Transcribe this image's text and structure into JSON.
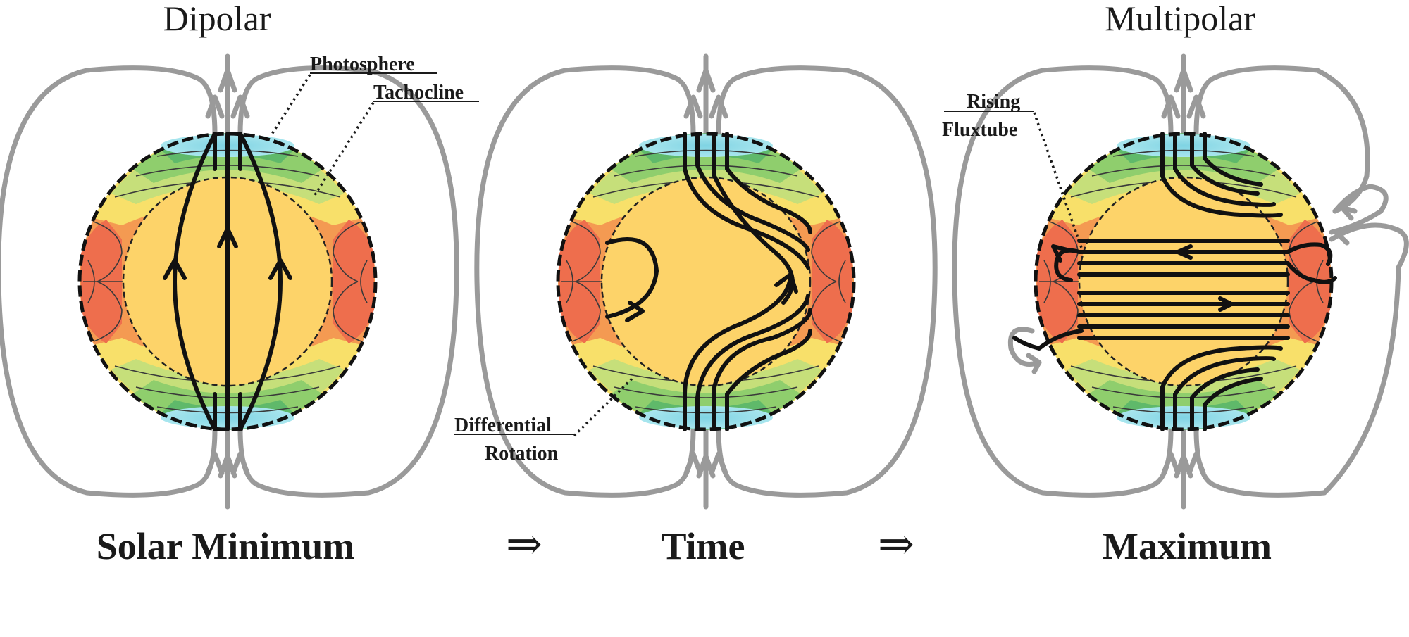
{
  "headers": {
    "left": "Dipolar",
    "right": "Multipolar"
  },
  "labels": {
    "photosphere": "Photosphere",
    "tachocline": "Tachocline",
    "rising_line1": "Rising",
    "rising_line2": "Fluxtube",
    "diff_line1": "Differential",
    "diff_line2": "Rotation"
  },
  "bottom": {
    "left": "Solar Minimum",
    "arrow1": "⇒",
    "middle": "Time",
    "arrow2": "⇒",
    "right": "Maximum"
  },
  "colors": {
    "core": "#fdd369",
    "equator_red": "#ee6e4d",
    "orange": "#f49a52",
    "yellow": "#f8e06a",
    "green_light": "#c6df7a",
    "green": "#8fce6d",
    "green_dark": "#5fb96a",
    "cyan": "#86d8e6",
    "field_external": "#9a9a9a",
    "field_internal": "#111111"
  }
}
